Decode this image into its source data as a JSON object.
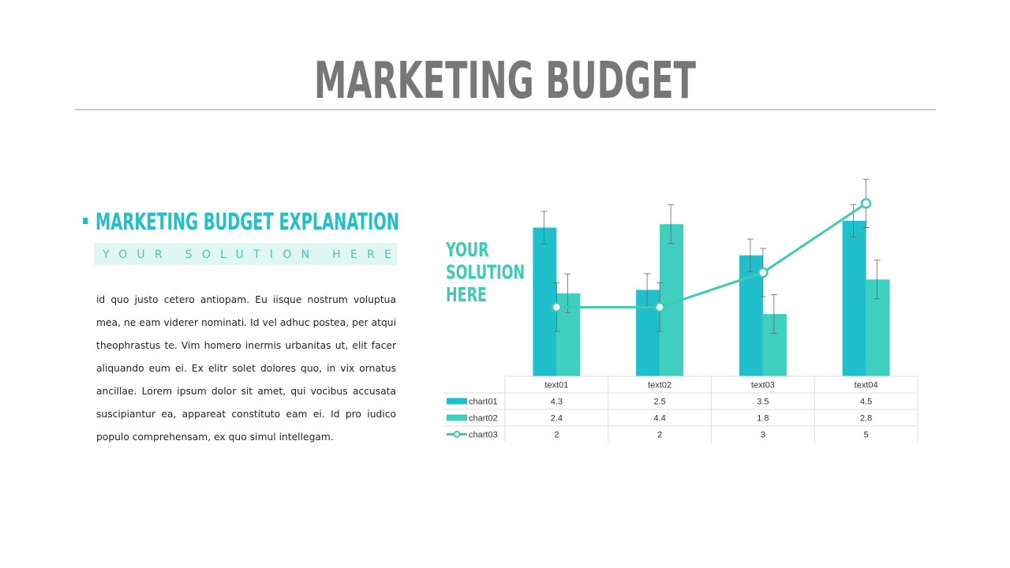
{
  "header": {
    "title": "MARKETING BUDGET"
  },
  "section": {
    "heading": "MARKETING BUDGET EXPLANATION",
    "tagline": "YOUR SOLUTION HERE",
    "body": "id quo justo cetero antiopam. Eu iisque nostrum voluptua mea, ne eam viderer nominati. Id vel adhuc postea, per atqui theophrastus te. Vim homero inermis urbanitas ut, elit facer aliquando eum ei. Ex elitr solet dolores quo, in vix ornatus ancillae. Lorem ipsum dolor sit amet, qui vocibus accusata suscipiantur ea, appareat constituto eam ei. Id pro iudico populo comprehensam, ex quo simul intellegam."
  },
  "chart_data": {
    "type": "bar",
    "callout": [
      "YOUR",
      "SOLUTION",
      "HERE"
    ],
    "categories": [
      "text01",
      "text02",
      "text03",
      "text04"
    ],
    "series": [
      {
        "name": "chart01",
        "type": "bar",
        "color": "#1fbfcc",
        "values": [
          4.3,
          2.5,
          3.5,
          4.5
        ],
        "errors": [
          0.47,
          0.47,
          0.47,
          0.47
        ]
      },
      {
        "name": "chart02",
        "type": "bar",
        "color": "#3ecfbf",
        "values": [
          2.4,
          4.4,
          1.8,
          2.8
        ],
        "errors": [
          0.56,
          0.56,
          0.56,
          0.56
        ]
      },
      {
        "name": "chart03",
        "type": "line",
        "color": "#3ecbb5",
        "values": [
          2,
          2,
          3,
          5
        ],
        "errors": [
          0.7,
          0.7,
          0.7,
          0.7
        ]
      }
    ],
    "ylim": [
      0,
      5.5
    ]
  }
}
